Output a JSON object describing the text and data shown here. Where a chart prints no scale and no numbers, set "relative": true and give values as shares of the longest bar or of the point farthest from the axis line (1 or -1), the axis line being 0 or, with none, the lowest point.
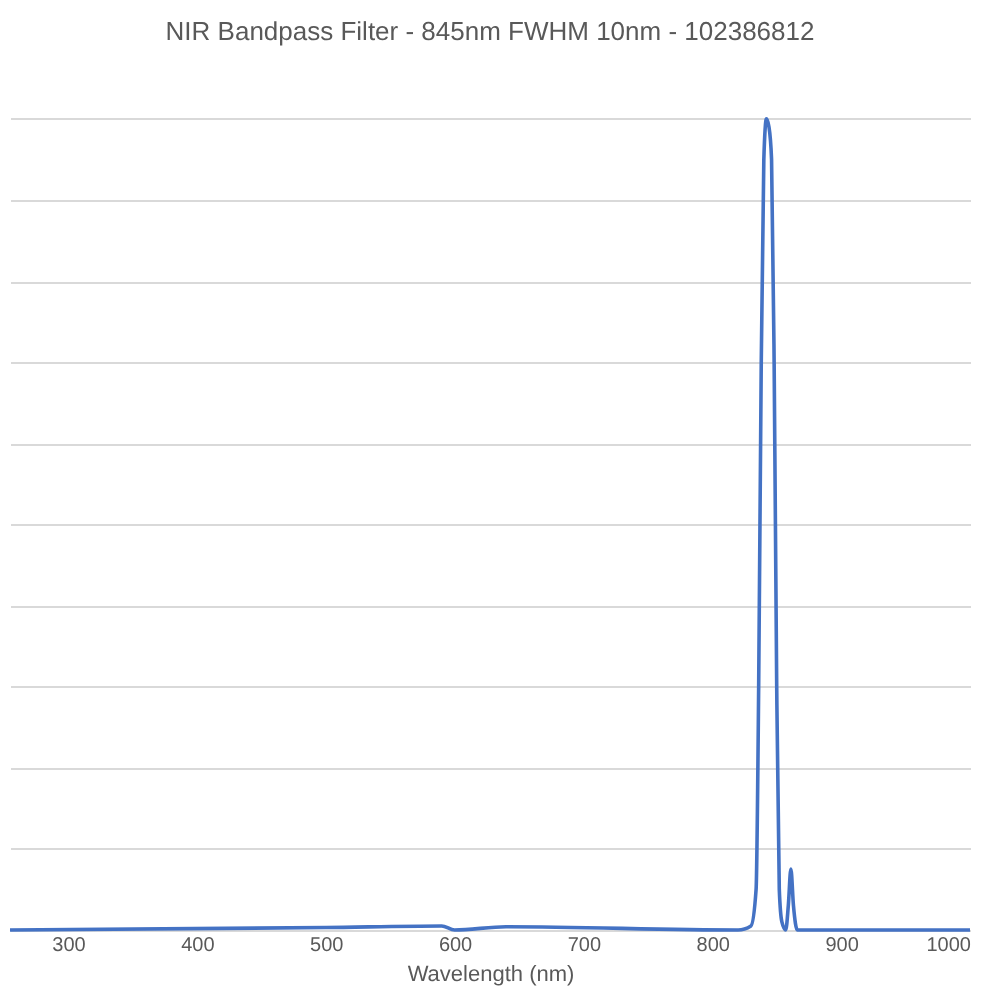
{
  "chart_data": {
    "type": "line",
    "title": "NIR Bandpass Filter - 845nm FWHM 10nm - 102386812",
    "xlabel": "Wavelength (nm)",
    "relative": true,
    "grid": "y",
    "legend": false,
    "marker": "none",
    "line_style": "solid",
    "xlim": [
      255,
      1000
    ],
    "xticks": [
      300,
      400,
      500,
      600,
      700,
      800,
      900,
      1000
    ],
    "series": [
      {
        "color": "#4472c4",
        "x": [
          255,
          500,
          590,
          600,
          640,
          820,
          830,
          834,
          836,
          838,
          840,
          842,
          844,
          846,
          848,
          850,
          852,
          854,
          857,
          859,
          861,
          863,
          866,
          1000
        ],
        "values": [
          0,
          0.003,
          0.005,
          0,
          0.004,
          0,
          0.005,
          0.05,
          0.3,
          0.7,
          0.95,
          1.0,
          0.99,
          0.95,
          0.7,
          0.3,
          0.05,
          0.01,
          0,
          0.03,
          0.075,
          0.03,
          0,
          0
        ]
      }
    ]
  }
}
